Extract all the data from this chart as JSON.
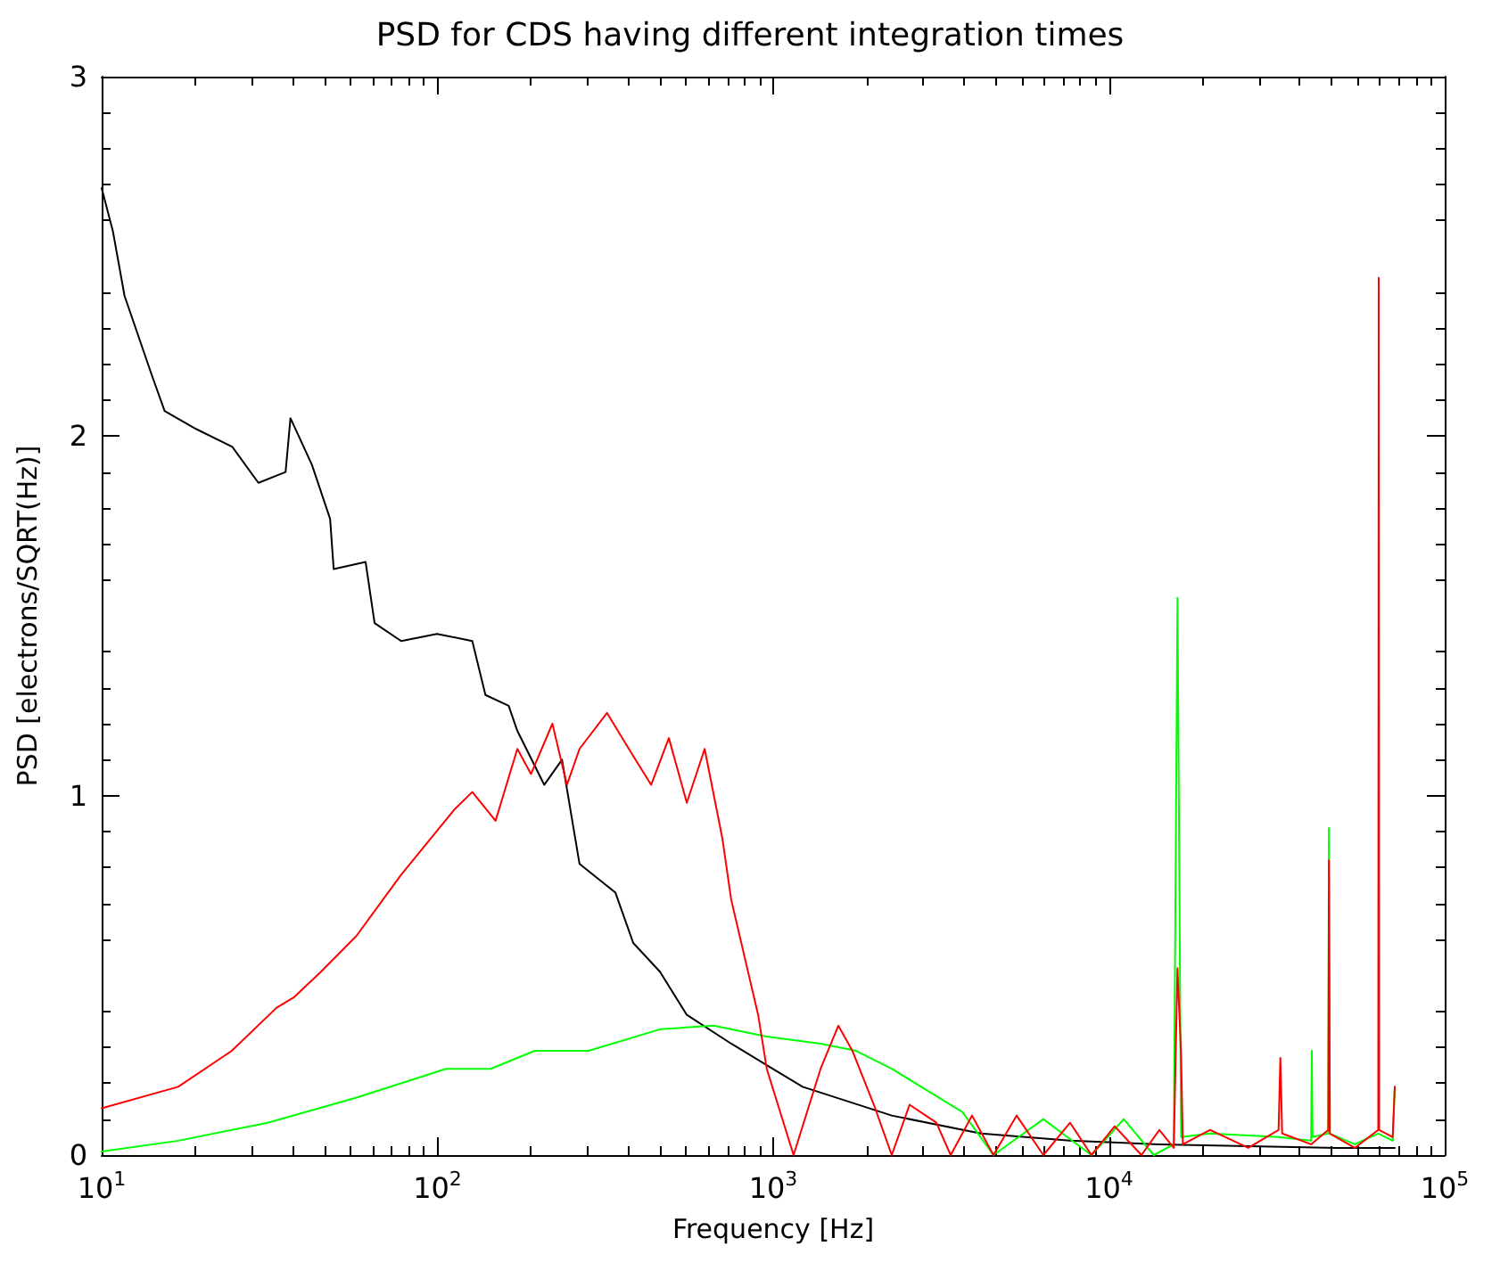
{
  "chart_data": {
    "type": "line",
    "title": "PSD for CDS having different integration times",
    "xlabel": "Frequency [Hz]",
    "ylabel": "PSD [electrons/SQRT(Hz)]",
    "log": "x",
    "xlim": [
      10,
      100000
    ],
    "xticks": [
      {
        "value": 10,
        "label": "10$^{1}$"
      },
      {
        "value": 100,
        "label": "10$^{2}$"
      },
      {
        "value": 1000,
        "label": "10$^{3}$"
      },
      {
        "value": 10000,
        "label": "10$^{4}$"
      },
      {
        "value": 100000,
        "label": "10$^{5}$"
      }
    ],
    "ylim": [
      0,
      3
    ],
    "yticks": [
      0,
      1,
      2,
      3
    ],
    "grid": false,
    "marker": "none",
    "line_style": "solid",
    "series": [
      {
        "color": "#000000",
        "x": [
          10,
          10.8,
          11.7,
          14.1,
          15.4,
          19.1,
          24.5,
          29.3,
          35.3,
          36.5,
          42.3,
          47.9,
          49.1,
          61.1,
          65,
          78,
          99.7,
          127,
          139,
          163,
          173,
          208,
          235,
          265,
          339,
          383,
          460,
          553,
          750,
          957,
          1224,
          2255,
          4155,
          7660,
          14120,
          26060,
          48000,
          71000
        ],
        "values": [
          2.69,
          2.57,
          2.39,
          2.17,
          2.07,
          2.02,
          1.97,
          1.87,
          1.9,
          2.05,
          1.92,
          1.77,
          1.63,
          1.65,
          1.48,
          1.43,
          1.45,
          1.43,
          1.28,
          1.25,
          1.18,
          1.03,
          1.1,
          0.81,
          0.73,
          0.59,
          0.51,
          0.39,
          0.31,
          0.25,
          0.19,
          0.11,
          0.06,
          0.04,
          0.03,
          0.025,
          0.02,
          0.02
        ]
      },
      {
        "color": "#00ff00",
        "x": [
          10,
          16.9,
          31.2,
          57.4,
          106,
          144,
          195,
          282,
          460,
          664,
          957,
          1384,
          1766,
          2255,
          2870,
          3660,
          4529,
          6378,
          8872,
          11070,
          13600,
          15600,
          16000,
          16400,
          20000,
          32000,
          40000,
          40200,
          40400,
          45000,
          45200,
          45500,
          54000,
          63400,
          70000,
          71000
        ],
        "values": [
          0.01,
          0.04,
          0.09,
          0.16,
          0.24,
          0.24,
          0.29,
          0.29,
          0.35,
          0.36,
          0.33,
          0.31,
          0.29,
          0.24,
          0.18,
          0.12,
          0,
          0.1,
          0,
          0.1,
          0,
          0.03,
          1.55,
          0.05,
          0.06,
          0.05,
          0.04,
          0.29,
          0.05,
          0.06,
          0.91,
          0.06,
          0.03,
          0.06,
          0.04,
          0.19
        ]
      },
      {
        "color": "#ff0000",
        "x": [
          10,
          16.9,
          24.4,
          33.2,
          37.5,
          45,
          57.4,
          78,
          112,
          127,
          149,
          173,
          190,
          220,
          243,
          265,
          320,
          383,
          433,
          489,
          553,
          625,
          706,
          750,
          902,
          957,
          1150,
          1384,
          1563,
          1722,
          1995,
          2255,
          2548,
          3062,
          3378,
          3910,
          4529,
          5309,
          6378,
          7660,
          8872,
          10400,
          12500,
          14130,
          15600,
          16000,
          16400,
          16600,
          20000,
          26000,
          32000,
          32400,
          32800,
          40000,
          45000,
          45200,
          45500,
          54000,
          63400,
          63600,
          63800,
          70000,
          71000
        ],
        "values": [
          0.13,
          0.19,
          0.29,
          0.41,
          0.44,
          0.51,
          0.61,
          0.78,
          0.96,
          1.01,
          0.93,
          1.13,
          1.06,
          1.2,
          1.03,
          1.13,
          1.23,
          1.11,
          1.03,
          1.16,
          0.98,
          1.13,
          0.88,
          0.71,
          0.39,
          0.24,
          0,
          0.24,
          0.36,
          0.29,
          0.14,
          0,
          0.14,
          0.09,
          0,
          0.11,
          0,
          0.11,
          0,
          0.09,
          0,
          0.08,
          0,
          0.07,
          0.02,
          0.52,
          0.28,
          0.03,
          0.07,
          0.02,
          0.07,
          0.27,
          0.06,
          0.03,
          0.07,
          0.82,
          0.06,
          0.02,
          0.07,
          2.44,
          0.07,
          0.05,
          0.19
        ]
      }
    ]
  }
}
